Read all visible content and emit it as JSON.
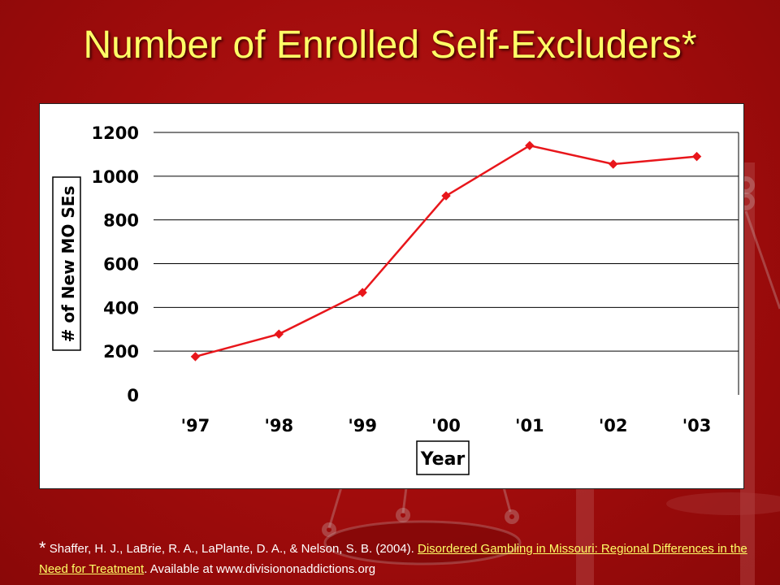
{
  "slide": {
    "title": "Number of Enrolled Self-Excluders*",
    "footnote": {
      "marker": "*",
      "authors": "Shaffer, H. J., LaBrie, R. A., LaPlante, D. A., & Nelson, S. B. (2004). ",
      "link_text": "Disordered Gambling in Missouri: Regional Differences in the Need for Treatment",
      "suffix": ". Available at www.divisiononaddictions.org"
    },
    "colors": {
      "background": "#a50d0d",
      "title": "#ffff66",
      "link": "#ffff66",
      "series_line": "#e8161b",
      "gridline": "#000000"
    }
  },
  "chart_data": {
    "type": "line",
    "categories": [
      "'97",
      "'98",
      "'99",
      "'00",
      "'01",
      "'02",
      "'03"
    ],
    "series": [
      {
        "values": [
          175,
          278,
          468,
          910,
          1140,
          1055,
          1090
        ]
      }
    ],
    "xlabel": "Year",
    "ylabel": "# of New MO SEs",
    "ylim": [
      0,
      1200
    ],
    "yticks": [
      0,
      200,
      400,
      600,
      800,
      1000,
      1200
    ],
    "grid": "horizontal",
    "marker": "diamond",
    "legend": "none"
  }
}
